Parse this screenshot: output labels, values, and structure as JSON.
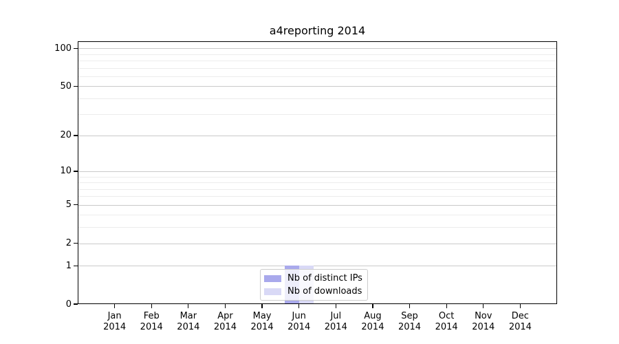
{
  "colors": {
    "background": "#ffffff",
    "axis": "#000000",
    "grid_major": "#c9c9c9",
    "grid_minor": "#ececec",
    "legend_border": "#cccccc",
    "legend_background": "rgba(255,255,255,0.8)"
  },
  "chart_data": {
    "type": "bar",
    "title": "a4reporting 2014",
    "xlabel": "",
    "ylabel": "",
    "categories": [
      "Jan 2014",
      "Feb 2014",
      "Mar 2014",
      "Apr 2014",
      "May 2014",
      "Jun 2014",
      "Jul 2014",
      "Aug 2014",
      "Sep 2014",
      "Oct 2014",
      "Nov 2014",
      "Dec 2014"
    ],
    "series": [
      {
        "name": "Nb of distinct IPs",
        "color": "#a9a9ec",
        "values": [
          0,
          0,
          0,
          0,
          0,
          1,
          0,
          0,
          0,
          0,
          0,
          0
        ]
      },
      {
        "name": "Nb of downloads",
        "color": "#d9d9f6",
        "values": [
          0,
          0,
          0,
          0,
          0,
          1,
          0,
          0,
          0,
          0,
          0,
          0
        ]
      }
    ],
    "y_scale": "log1p",
    "y_ticks": [
      0,
      1,
      2,
      5,
      10,
      20,
      50,
      100
    ],
    "y_minor_ticks": [
      3,
      4,
      6,
      7,
      8,
      9,
      30,
      40,
      60,
      70,
      80,
      90
    ],
    "ylim": [
      0,
      114
    ],
    "grid": true,
    "legend_position": "lower center"
  }
}
